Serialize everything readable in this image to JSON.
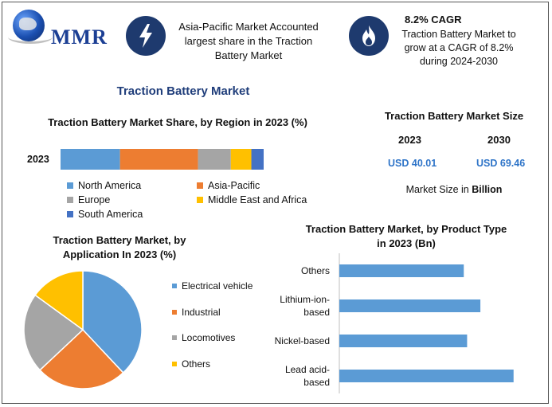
{
  "logo": {
    "text": "MMR"
  },
  "header": {
    "asia_text": "Asia-Pacific Market Accounted largest share in the Traction Battery Market",
    "cagr_title": "8.2% CAGR",
    "cagr_text": "Traction Battery Market to grow at a CAGR of 8.2% during 2024-2030"
  },
  "main_title": "Traction Battery Market",
  "size_panel": {
    "title": "Traction Battery Market Size",
    "year1": "2023",
    "year2": "2030",
    "value1": "USD 40.01",
    "value2": "USD 69.46",
    "note_prefix": "Market Size in ",
    "note_bold": "Billion"
  },
  "colors": {
    "blue": "#5b9bd5",
    "orange": "#ed7d31",
    "gray": "#a5a5a5",
    "yellow": "#ffc000",
    "darkblue": "#4472c4",
    "navy": "#1e3a6e"
  },
  "chart_data": [
    {
      "type": "bar",
      "orientation": "horizontal-stacked",
      "title": "Traction Battery Market Share, by Region in 2023 (%)",
      "categories": [
        "2023"
      ],
      "series": [
        {
          "name": "North America",
          "values": [
            29
          ],
          "color": "#5b9bd5"
        },
        {
          "name": "Asia-Pacific",
          "values": [
            38
          ],
          "color": "#ed7d31"
        },
        {
          "name": "Europe",
          "values": [
            16
          ],
          "color": "#a5a5a5"
        },
        {
          "name": "Middle East and Africa",
          "values": [
            10
          ],
          "color": "#ffc000"
        },
        {
          "name": "South America",
          "values": [
            6
          ],
          "color": "#4472c4"
        }
      ]
    },
    {
      "type": "pie",
      "title": "Traction Battery Market, by Application In 2023 (%)",
      "labels": [
        "Electrical vehicle",
        "Industrial",
        "Locomotives",
        "Others"
      ],
      "values": [
        38,
        25,
        22,
        15
      ],
      "colors": [
        "#5b9bd5",
        "#ed7d31",
        "#a5a5a5",
        "#ffc000"
      ]
    },
    {
      "type": "bar",
      "orientation": "horizontal",
      "title": "Traction Battery Market, by Product Type in 2023 (Bn)",
      "categories": [
        "Others",
        "Lithium-ion-based",
        "Nickel-based",
        "Lead acid-based"
      ],
      "category_lines": [
        [
          "Others"
        ],
        [
          "Lithium-ion-",
          "based"
        ],
        [
          "Nickel-based"
        ],
        [
          "Lead acid-",
          "based"
        ]
      ],
      "values": [
        7.5,
        8.5,
        7.7,
        10.5
      ],
      "xlim": [
        0,
        12
      ],
      "color": "#5b9bd5"
    }
  ]
}
